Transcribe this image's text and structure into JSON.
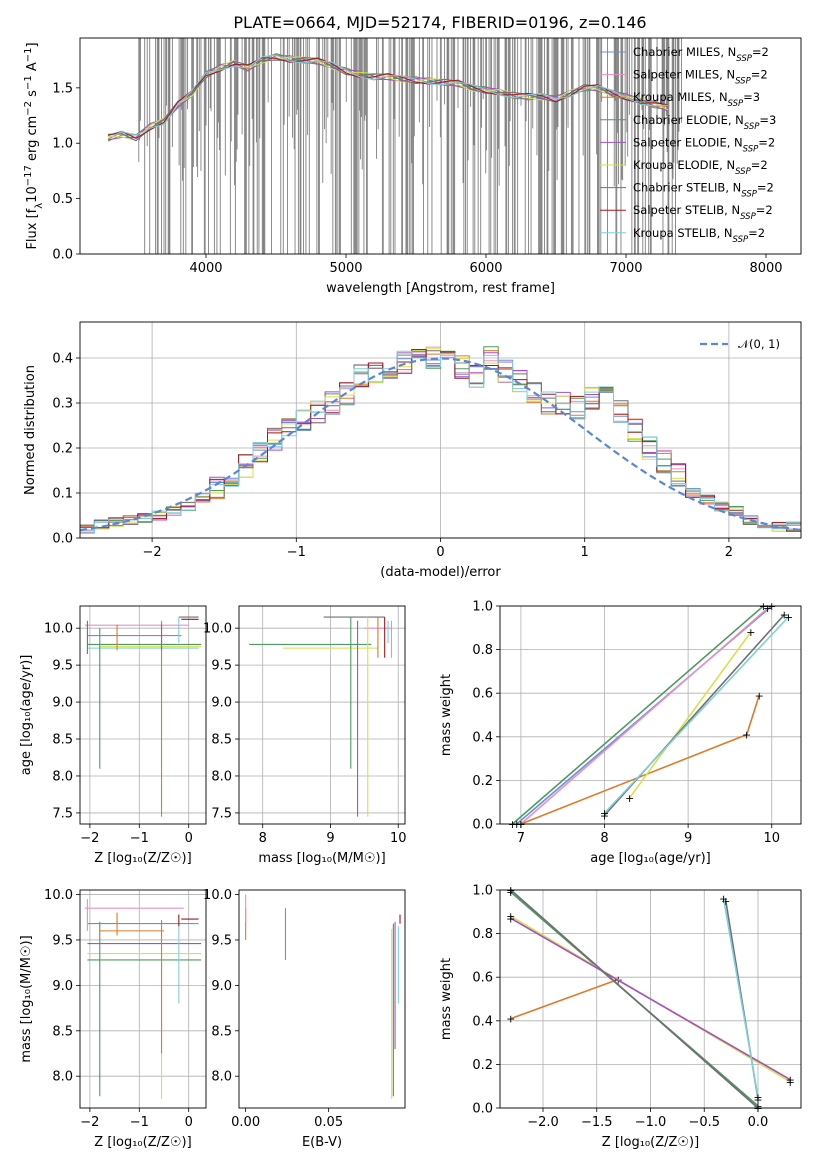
{
  "title": "PLATE=0664, MJD=52174, FIBERID=0196, z=0.146",
  "colors": {
    "chabrier_miles": "#6b8fd9",
    "salpeter_miles": "#e890c8",
    "kroupa_miles": "#e07a28",
    "chabrier_elodie": "#4f9a60",
    "salpeter_elodie": "#a64fc8",
    "kroupa_elodie": "#d8e04a",
    "chabrier_stelib": "#707070",
    "salpeter_stelib": "#9b1b22",
    "kroupa_stelib": "#7fd0dc",
    "data": "#808080",
    "gaussian": "#5b86d6"
  },
  "chart_data": [
    {
      "id": "spectrum",
      "type": "line",
      "xlabel": "wavelength [Angstrom, rest frame]",
      "ylabel_main": "Flux [f",
      "ylabel_sub": "λ",
      "ylabel_rest": "10",
      "ylabel_exp": "−17",
      "ylabel_units": " erg cm",
      "ylabel_units_exp": "−2",
      "ylabel_units2": " s",
      "ylabel_units_exp2": "−1",
      "ylabel_units3": " A",
      "ylabel_units_exp3": "−1",
      "ylabel_end": "]",
      "xlim": [
        3100,
        8250
      ],
      "ylim": [
        0,
        1.95
      ],
      "xticks": [
        4000,
        5000,
        6000,
        7000,
        8000
      ],
      "yticks": [
        0.0,
        0.5,
        1.0,
        1.5
      ],
      "model_curve": [
        [
          3300,
          1.05
        ],
        [
          3400,
          1.08
        ],
        [
          3500,
          1.05
        ],
        [
          3600,
          1.15
        ],
        [
          3700,
          1.2
        ],
        [
          3800,
          1.35
        ],
        [
          3900,
          1.45
        ],
        [
          4000,
          1.62
        ],
        [
          4100,
          1.68
        ],
        [
          4200,
          1.72
        ],
        [
          4300,
          1.68
        ],
        [
          4400,
          1.75
        ],
        [
          4500,
          1.78
        ],
        [
          4600,
          1.76
        ],
        [
          4700,
          1.75
        ],
        [
          4800,
          1.74
        ],
        [
          4900,
          1.7
        ],
        [
          5000,
          1.65
        ],
        [
          5100,
          1.62
        ],
        [
          5200,
          1.6
        ],
        [
          5300,
          1.6
        ],
        [
          5400,
          1.58
        ],
        [
          5500,
          1.57
        ],
        [
          5600,
          1.56
        ],
        [
          5700,
          1.55
        ],
        [
          5800,
          1.54
        ],
        [
          5900,
          1.5
        ],
        [
          6000,
          1.48
        ],
        [
          6100,
          1.46
        ],
        [
          6200,
          1.43
        ],
        [
          6300,
          1.42
        ],
        [
          6400,
          1.42
        ],
        [
          6500,
          1.4
        ],
        [
          6600,
          1.45
        ],
        [
          6700,
          1.5
        ],
        [
          6800,
          1.5
        ],
        [
          6900,
          1.45
        ],
        [
          7000,
          1.42
        ],
        [
          7100,
          1.38
        ],
        [
          7200,
          1.35
        ],
        [
          7300,
          1.32
        ]
      ],
      "legend": [
        {
          "label": "Chabrier MILES, N",
          "sub": "SSP",
          "val": "=2",
          "color_key": "chabrier_miles"
        },
        {
          "label": "Salpeter MILES, N",
          "sub": "SSP",
          "val": "=2",
          "color_key": "salpeter_miles"
        },
        {
          "label": "Kroupa MILES, N",
          "sub": "SSP",
          "val": "=3",
          "color_key": "kroupa_miles"
        },
        {
          "label": "Chabrier ELODIE, N",
          "sub": "SSP",
          "val": "=3",
          "color_key": "chabrier_elodie"
        },
        {
          "label": "Salpeter ELODIE, N",
          "sub": "SSP",
          "val": "=2",
          "color_key": "salpeter_elodie"
        },
        {
          "label": "Kroupa ELODIE, N",
          "sub": "SSP",
          "val": "=2",
          "color_key": "kroupa_elodie"
        },
        {
          "label": "Chabrier STELIB, N",
          "sub": "SSP",
          "val": "=2",
          "color_key": "chabrier_stelib"
        },
        {
          "label": "Salpeter STELIB, N",
          "sub": "SSP",
          "val": "=2",
          "color_key": "salpeter_stelib"
        },
        {
          "label": "Kroupa STELIB, N",
          "sub": "SSP",
          "val": "=2",
          "color_key": "kroupa_stelib"
        }
      ]
    },
    {
      "id": "residuals",
      "type": "line",
      "xlabel": "(data-model)/error",
      "ylabel": "Normed distribution",
      "xlim": [
        -2.5,
        2.5
      ],
      "ylim": [
        0,
        0.48
      ],
      "xticks": [
        -2,
        -1,
        0,
        1,
        2
      ],
      "yticks": [
        0.0,
        0.1,
        0.2,
        0.3,
        0.4
      ],
      "legend_label": "𝒩(0, 1)",
      "histogram_bins": [
        -2.5,
        -2.4,
        -2.3,
        -2.2,
        -2.1,
        -2.0,
        -1.9,
        -1.8,
        -1.7,
        -1.6,
        -1.5,
        -1.4,
        -1.3,
        -1.2,
        -1.1,
        -1.0,
        -0.9,
        -0.8,
        -0.7,
        -0.6,
        -0.5,
        -0.4,
        -0.3,
        -0.2,
        -0.1,
        0.0,
        0.1,
        0.2,
        0.3,
        0.4,
        0.5,
        0.6,
        0.7,
        0.8,
        0.9,
        1.0,
        1.1,
        1.2,
        1.3,
        1.4,
        1.5,
        1.6,
        1.7,
        1.8,
        1.9,
        2.0,
        2.1,
        2.2,
        2.3,
        2.4,
        2.5
      ],
      "histogram_values": [
        0.02,
        0.03,
        0.035,
        0.04,
        0.045,
        0.05,
        0.06,
        0.07,
        0.09,
        0.11,
        0.14,
        0.16,
        0.19,
        0.22,
        0.24,
        0.26,
        0.28,
        0.3,
        0.32,
        0.36,
        0.37,
        0.38,
        0.39,
        0.41,
        0.4,
        0.39,
        0.38,
        0.36,
        0.4,
        0.37,
        0.35,
        0.32,
        0.3,
        0.3,
        0.29,
        0.31,
        0.32,
        0.28,
        0.24,
        0.2,
        0.17,
        0.14,
        0.1,
        0.085,
        0.07,
        0.06,
        0.04,
        0.03,
        0.025,
        0.025
      ]
    },
    {
      "id": "age_vs_Z",
      "type": "line",
      "xlabel": "Z [log₁₀(Z/Z☉)]",
      "ylabel": "age  [log₁₀(age/yr)]",
      "xlim": [
        -2.2,
        0.35
      ],
      "ylim": [
        7.35,
        10.3
      ],
      "xticks": [
        -2,
        -1,
        0
      ],
      "yticks": [
        7.5,
        8.0,
        8.5,
        9.0,
        9.5,
        10.0
      ]
    },
    {
      "id": "age_vs_mass",
      "type": "line",
      "xlabel": "mass [log₁₀(M/M☉)]",
      "xlim": [
        7.65,
        10.1
      ],
      "ylim": [
        7.35,
        10.3
      ],
      "xticks": [
        8,
        9,
        10
      ],
      "yticks": [
        7.5,
        8.0,
        8.5,
        9.0,
        9.5,
        10.0
      ]
    },
    {
      "id": "weight_vs_age",
      "type": "line",
      "xlabel": "age  [log₁₀(age/yr)]",
      "ylabel": "mass weight",
      "xlim": [
        6.75,
        10.35
      ],
      "ylim": [
        0,
        1.0
      ],
      "xticks": [
        7,
        8,
        9,
        10
      ],
      "yticks": [
        0.0,
        0.2,
        0.4,
        0.6,
        0.8,
        1.0
      ]
    },
    {
      "id": "mass_vs_Z",
      "type": "line",
      "xlabel": "Z [log₁₀(Z/Z☉)]",
      "ylabel": "mass [log₁₀(M/M☉)]",
      "xlim": [
        -2.2,
        0.35
      ],
      "ylim": [
        7.65,
        10.05
      ],
      "xticks": [
        -2,
        -1,
        0
      ],
      "yticks": [
        8.0,
        8.5,
        9.0,
        9.5,
        10.0
      ]
    },
    {
      "id": "mass_vs_ebv",
      "type": "line",
      "xlabel": "E(B-V)",
      "xlim": [
        -0.004,
        0.096
      ],
      "ylim": [
        7.65,
        10.05
      ],
      "xticks": [
        0.0,
        0.05
      ],
      "yticks": [
        8.0,
        8.5,
        9.0,
        9.5,
        10.0
      ]
    },
    {
      "id": "weight_vs_Z",
      "type": "line",
      "xlabel": "Z [log₁₀(Z/Z☉)]",
      "ylabel": "mass weight",
      "xlim": [
        -2.4,
        0.4
      ],
      "ylim": [
        0,
        1.0
      ],
      "xticks": [
        -2.0,
        -1.5,
        -1.0,
        -0.5,
        0.0
      ],
      "yticks": [
        0.0,
        0.2,
        0.4,
        0.6,
        0.8,
        1.0
      ]
    }
  ]
}
